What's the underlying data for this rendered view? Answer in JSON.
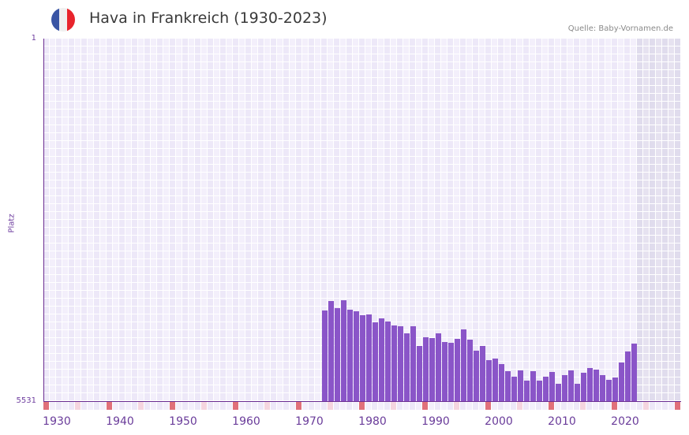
{
  "header": {
    "title": "Hava in Frankreich (1930-2023)",
    "source": "Quelle: Baby-Vornamen.de",
    "flag_icon": "france-flag-icon",
    "flag_colors": [
      "#3a55a4",
      "#f0f0f0",
      "#e8242c"
    ]
  },
  "axis": {
    "ylabel": "Platz",
    "ytop": "1",
    "ybottom": "5531"
  },
  "colors": {
    "bar": "#8a55c8",
    "axis": "#6a2c91",
    "decade_marker": "#e0707a",
    "half_decade_marker": "#f5d5df"
  },
  "chart_data": {
    "type": "bar",
    "title": "Hava in Frankreich (1930-2023)",
    "xlabel": "",
    "ylabel": "Platz",
    "ylim": [
      5531,
      1
    ],
    "y_inverted": true,
    "grid": true,
    "x_range": [
      1930,
      2030
    ],
    "x_tick_labels": [
      "1930",
      "1940",
      "1950",
      "1960",
      "1970",
      "1980",
      "1990",
      "2000",
      "2010",
      "2020"
    ],
    "categories": [
      1974,
      1975,
      1976,
      1977,
      1978,
      1979,
      1980,
      1981,
      1982,
      1983,
      1984,
      1985,
      1986,
      1987,
      1988,
      1989,
      1990,
      1991,
      1992,
      1993,
      1994,
      1995,
      1996,
      1997,
      1998,
      1999,
      2000,
      2001,
      2002,
      2003,
      2004,
      2005,
      2006,
      2007,
      2008,
      2009,
      2010,
      2011,
      2012,
      2013,
      2014,
      2015,
      2016,
      2017,
      2018,
      2019,
      2020,
      2021,
      2022,
      2023
    ],
    "values": [
      4149,
      4004,
      4113,
      3992,
      4137,
      4161,
      4221,
      4209,
      4329,
      4269,
      4317,
      4377,
      4389,
      4497,
      4389,
      4690,
      4557,
      4569,
      4497,
      4630,
      4642,
      4582,
      4437,
      4594,
      4762,
      4690,
      4906,
      4882,
      4966,
      5075,
      5158,
      5062,
      5219,
      5075,
      5219,
      5158,
      5087,
      5267,
      5135,
      5062,
      5267,
      5099,
      5026,
      5050,
      5135,
      5207,
      5171,
      4942,
      4774,
      4654
    ],
    "source": "Quelle: Baby-Vornamen.de"
  }
}
